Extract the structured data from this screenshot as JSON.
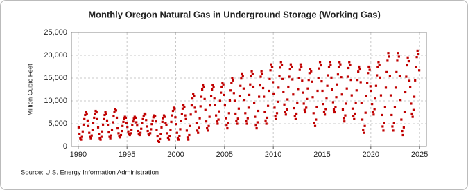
{
  "chart_data": {
    "type": "scatter",
    "title": "Monthly Oregon Natural Gas in Underground Storage (Working Gas)",
    "y_label": "Million Cubic Feet",
    "source": "Source: U.S. Energy Information Administration",
    "color": "#c00000",
    "grid": true,
    "xlim": [
      1989.3,
      2025.7
    ],
    "xticks": [
      1990,
      1995,
      2000,
      2005,
      2010,
      2015,
      2020,
      2025
    ],
    "ylim": [
      0,
      25000
    ],
    "yticks": [
      0,
      {
        "value": 5000,
        "label": "5,000"
      },
      {
        "value": 10000,
        "label": "10,000"
      },
      {
        "value": 15000,
        "label": "15,000"
      },
      {
        "value": 20000,
        "label": "20,000"
      },
      {
        "value": 25000,
        "label": "25,000"
      }
    ],
    "x": [
      1990.04,
      1990.13,
      1990.21,
      1990.29,
      1990.38,
      1990.46,
      1990.54,
      1990.63,
      1990.71,
      1990.79,
      1990.88,
      1990.96,
      1991.04,
      1991.13,
      1991.21,
      1991.29,
      1991.38,
      1991.46,
      1991.54,
      1991.63,
      1991.71,
      1991.79,
      1991.88,
      1991.96,
      1992.04,
      1992.13,
      1992.21,
      1992.29,
      1992.38,
      1992.46,
      1992.54,
      1992.63,
      1992.71,
      1992.79,
      1992.88,
      1992.96,
      1993.04,
      1993.13,
      1993.21,
      1993.29,
      1993.38,
      1993.46,
      1993.54,
      1993.63,
      1993.71,
      1993.79,
      1993.88,
      1993.96,
      1994.04,
      1994.13,
      1994.21,
      1994.29,
      1994.38,
      1994.46,
      1994.54,
      1994.63,
      1994.71,
      1994.79,
      1994.88,
      1994.96,
      1995.04,
      1995.13,
      1995.21,
      1995.29,
      1995.38,
      1995.46,
      1995.54,
      1995.63,
      1995.71,
      1995.79,
      1995.88,
      1995.96,
      1996.04,
      1996.13,
      1996.21,
      1996.29,
      1996.38,
      1996.46,
      1996.54,
      1996.63,
      1996.71,
      1996.79,
      1996.88,
      1996.96,
      1997.04,
      1997.13,
      1997.21,
      1997.29,
      1997.38,
      1997.46,
      1997.54,
      1997.63,
      1997.71,
      1997.79,
      1997.88,
      1997.96,
      1998.04,
      1998.13,
      1998.21,
      1998.29,
      1998.38,
      1998.46,
      1998.54,
      1998.63,
      1998.71,
      1998.79,
      1998.88,
      1998.96,
      1999.04,
      1999.13,
      1999.21,
      1999.29,
      1999.38,
      1999.46,
      1999.54,
      1999.63,
      1999.71,
      1999.79,
      1999.88,
      1999.96,
      2000.04,
      2000.13,
      2000.21,
      2000.29,
      2000.38,
      2000.46,
      2000.54,
      2000.63,
      2000.71,
      2000.79,
      2000.88,
      2000.96,
      2001.04,
      2001.13,
      2001.21,
      2001.29,
      2001.38,
      2001.46,
      2001.54,
      2001.63,
      2001.71,
      2001.79,
      2001.88,
      2001.96,
      2002.04,
      2002.13,
      2002.21,
      2002.29,
      2002.38,
      2002.46,
      2002.54,
      2002.63,
      2002.71,
      2002.79,
      2002.88,
      2002.96,
      2003.04,
      2003.13,
      2003.21,
      2003.29,
      2003.38,
      2003.46,
      2003.54,
      2003.63,
      2003.71,
      2003.79,
      2003.88,
      2003.96,
      2004.04,
      2004.13,
      2004.21,
      2004.29,
      2004.38,
      2004.46,
      2004.54,
      2004.63,
      2004.71,
      2004.79,
      2004.88,
      2004.96,
      2005.04,
      2005.13,
      2005.21,
      2005.29,
      2005.38,
      2005.46,
      2005.54,
      2005.63,
      2005.71,
      2005.79,
      2005.88,
      2005.96,
      2006.04,
      2006.13,
      2006.21,
      2006.29,
      2006.38,
      2006.46,
      2006.54,
      2006.63,
      2006.71,
      2006.79,
      2006.88,
      2006.96,
      2007.04,
      2007.13,
      2007.21,
      2007.29,
      2007.38,
      2007.46,
      2007.54,
      2007.63,
      2007.71,
      2007.79,
      2007.88,
      2007.96,
      2008.04,
      2008.13,
      2008.21,
      2008.29,
      2008.38,
      2008.46,
      2008.54,
      2008.63,
      2008.71,
      2008.79,
      2008.88,
      2008.96,
      2009.04,
      2009.13,
      2009.21,
      2009.29,
      2009.38,
      2009.46,
      2009.54,
      2009.63,
      2009.71,
      2009.79,
      2009.88,
      2009.96,
      2010.04,
      2010.13,
      2010.21,
      2010.29,
      2010.38,
      2010.46,
      2010.54,
      2010.63,
      2010.71,
      2010.79,
      2010.88,
      2010.96,
      2011.04,
      2011.13,
      2011.21,
      2011.29,
      2011.38,
      2011.46,
      2011.54,
      2011.63,
      2011.71,
      2011.79,
      2011.88,
      2011.96,
      2012.04,
      2012.13,
      2012.21,
      2012.29,
      2012.38,
      2012.46,
      2012.54,
      2012.63,
      2012.71,
      2012.79,
      2012.88,
      2012.96,
      2013.04,
      2013.13,
      2013.21,
      2013.29,
      2013.38,
      2013.46,
      2013.54,
      2013.63,
      2013.71,
      2013.79,
      2013.88,
      2013.96,
      2014.04,
      2014.13,
      2014.21,
      2014.29,
      2014.38,
      2014.46,
      2014.54,
      2014.63,
      2014.71,
      2014.79,
      2014.88,
      2014.96,
      2015.04,
      2015.13,
      2015.21,
      2015.29,
      2015.38,
      2015.46,
      2015.54,
      2015.63,
      2015.71,
      2015.79,
      2015.88,
      2015.96,
      2016.04,
      2016.13,
      2016.21,
      2016.29,
      2016.38,
      2016.46,
      2016.54,
      2016.63,
      2016.71,
      2016.79,
      2016.88,
      2016.96,
      2017.04,
      2017.13,
      2017.21,
      2017.29,
      2017.38,
      2017.46,
      2017.54,
      2017.63,
      2017.71,
      2017.79,
      2017.88,
      2017.96,
      2018.04,
      2018.13,
      2018.21,
      2018.29,
      2018.38,
      2018.46,
      2018.54,
      2018.63,
      2018.71,
      2018.79,
      2018.88,
      2018.96,
      2019.04,
      2019.13,
      2019.21,
      2019.29,
      2019.38,
      2019.46,
      2019.54,
      2019.63,
      2019.71,
      2019.79,
      2019.88,
      2019.96,
      2020.04,
      2020.13,
      2020.21,
      2020.29,
      2020.38,
      2020.46,
      2020.54,
      2020.63,
      2020.71,
      2020.79,
      2020.88,
      2020.96,
      2021.04,
      2021.13,
      2021.21,
      2021.29,
      2021.38,
      2021.46,
      2021.54,
      2021.63,
      2021.71,
      2021.79,
      2021.88,
      2021.96,
      2022.04,
      2022.13,
      2022.21,
      2022.29,
      2022.38,
      2022.46,
      2022.54,
      2022.63,
      2022.71,
      2022.79,
      2022.88,
      2022.96,
      2023.04,
      2023.13,
      2023.21,
      2023.29,
      2023.38,
      2023.46,
      2023.54,
      2023.63,
      2023.71,
      2023.79,
      2023.88,
      2023.96,
      2024.04,
      2024.13,
      2024.21,
      2024.29,
      2024.38,
      2024.46,
      2024.54,
      2024.63,
      2024.71,
      2024.79,
      2024.88,
      2024.96
    ],
    "values": [
      4200,
      2700,
      1800,
      1500,
      2100,
      3300,
      4800,
      6000,
      6900,
      7500,
      7200,
      5700,
      4500,
      3000,
      2100,
      1800,
      2400,
      3600,
      5100,
      6300,
      7200,
      7800,
      7500,
      6000,
      4200,
      2700,
      1800,
      1500,
      2100,
      3300,
      4800,
      6000,
      6900,
      7500,
      7200,
      5700,
      4700,
      3100,
      2100,
      1800,
      2400,
      3700,
      5300,
      6600,
      7600,
      8200,
      7900,
      6300,
      4000,
      2900,
      2200,
      2000,
      2500,
      3400,
      4500,
      5400,
      6100,
      6500,
      6300,
      5200,
      4300,
      3300,
      2700,
      2500,
      2900,
      3700,
      4700,
      5500,
      6100,
      6500,
      6300,
      5300,
      4600,
      3400,
      2700,
      2500,
      3000,
      3900,
      5100,
      6000,
      6700,
      7200,
      7000,
      5800,
      4400,
      3400,
      2700,
      2500,
      2900,
      3800,
      4900,
      5700,
      6400,
      6800,
      6600,
      5500,
      3600,
      2200,
      1300,
      1000,
      1600,
      2700,
      4200,
      5400,
      6200,
      6800,
      6500,
      5100,
      4700,
      2900,
      1900,
      1500,
      2200,
      3600,
      5400,
      6800,
      7800,
      8500,
      8200,
      6400,
      4900,
      3000,
      1900,
      1500,
      2300,
      3800,
      5600,
      7100,
      8300,
      9000,
      8600,
      6800,
      6000,
      3500,
      2000,
      1500,
      2500,
      4500,
      7000,
      9000,
      10500,
      11500,
      11000,
      8500,
      7700,
      5100,
      3500,
      3000,
      4100,
      6200,
      8800,
      10900,
      12500,
      13500,
      13000,
      10400,
      8000,
      5500,
      4000,
      3500,
      4500,
      6500,
      9000,
      11000,
      12500,
      13500,
      13000,
      10500,
      9100,
      6800,
      5500,
      5000,
      5900,
      7700,
      10000,
      11800,
      13100,
      14000,
      13600,
      11300,
      9000,
      6200,
      4600,
      4000,
      5100,
      7300,
      10100,
      12300,
      13900,
      15000,
      14500,
      11700,
      10000,
      7200,
      5600,
      5000,
      6100,
      8300,
      11100,
      13300,
      14900,
      16000,
      15500,
      12700,
      10200,
      7300,
      5600,
      5000,
      6200,
      8500,
      11300,
      13600,
      15400,
      16500,
      15900,
      13100,
      9600,
      6500,
      4600,
      4000,
      5300,
      7800,
      10900,
      13400,
      15300,
      16500,
      15900,
      12800,
      10900,
      7600,
      5700,
      5000,
      6300,
      8900,
      12200,
      14800,
      16700,
      18000,
      17400,
      14100,
      11600,
      8500,
      6600,
      6000,
      7300,
      9800,
      12900,
      15400,
      17300,
      18500,
      17900,
      14800,
      12000,
      9200,
      7600,
      7000,
      8100,
      10300,
      13100,
      15300,
      16900,
      18000,
      17500,
      14700,
      11400,
      8400,
      6600,
      6000,
      7200,
      9600,
      12600,
      15000,
      16800,
      18000,
      17400,
      14400,
      11800,
      9400,
      8000,
      7500,
      8500,
      10400,
      12700,
      14600,
      16100,
      17000,
      16500,
      14200,
      10800,
      7300,
      5200,
      4500,
      5900,
      8700,
      12200,
      15000,
      17100,
      18500,
      17800,
      14300,
      12200,
      9300,
      7600,
      7000,
      8200,
      10500,
      13300,
      15600,
      17400,
      18500,
      17900,
      15100,
      12500,
      9700,
      8100,
      7500,
      8600,
      10800,
      13600,
      15800,
      17400,
      18500,
      18000,
      15200,
      11400,
      8100,
      6200,
      5500,
      6800,
      9400,
      12700,
      15300,
      17200,
      18500,
      17900,
      14600,
      11200,
      8300,
      6600,
      6000,
      7200,
      9500,
      12300,
      14600,
      16400,
      17500,
      16900,
      14100,
      9500,
      5900,
      3700,
      3000,
      4500,
      7400,
      11000,
      13900,
      16100,
      17500,
      16800,
      13200,
      12200,
      9300,
      7600,
      7000,
      8200,
      10500,
      13300,
      15600,
      17400,
      18500,
      17900,
      15100,
      11200,
      6900,
      4400,
      3500,
      5200,
      8600,
      12900,
      16300,
      18800,
      20500,
      19700,
      15400,
      11200,
      6900,
      4400,
      3500,
      5200,
      8600,
      12900,
      16300,
      18800,
      20500,
      19700,
      15400,
      10200,
      5900,
      3400,
      2500,
      4200,
      7600,
      11900,
      15300,
      17800,
      19500,
      18700,
      14400,
      13000,
      9400,
      7200,
      6500,
      8000,
      10900,
      14500,
      17400,
      19600,
      21000,
      20300,
      16700
    ]
  }
}
